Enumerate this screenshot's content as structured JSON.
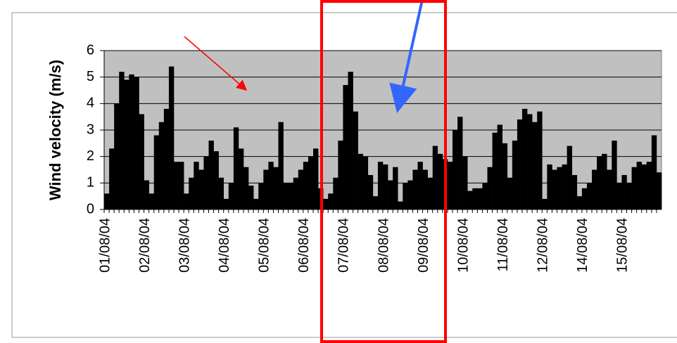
{
  "chart_data": {
    "type": "bar",
    "y_label": "Wind velocity (m/s)",
    "categories": [
      "01/08/04",
      null,
      null,
      null,
      null,
      null,
      null,
      null,
      "02/08/04",
      null,
      null,
      null,
      null,
      null,
      null,
      null,
      "03/08/04",
      null,
      null,
      null,
      null,
      null,
      null,
      null,
      "04/08/04",
      null,
      null,
      null,
      null,
      null,
      null,
      null,
      "05/08/04",
      null,
      null,
      null,
      null,
      null,
      null,
      null,
      "06/08/04",
      null,
      null,
      null,
      null,
      null,
      null,
      null,
      "07/08/04",
      null,
      null,
      null,
      null,
      null,
      null,
      null,
      "08/08/04",
      null,
      null,
      null,
      null,
      null,
      null,
      null,
      "09/08/04",
      null,
      null,
      null,
      null,
      null,
      null,
      null,
      "10/08/04",
      null,
      null,
      null,
      null,
      null,
      null,
      null,
      "11/08/04",
      null,
      null,
      null,
      null,
      null,
      null,
      null,
      "12/08/04",
      null,
      null,
      null,
      null,
      null,
      null,
      null,
      "14/08/04",
      null,
      null,
      null,
      null,
      null,
      null,
      null,
      "15/08/04",
      null,
      null,
      null,
      null,
      null,
      null,
      null
    ],
    "values": [
      0.6,
      2.3,
      4.0,
      5.2,
      4.9,
      5.1,
      5.0,
      3.6,
      1.1,
      0.6,
      2.8,
      3.3,
      3.8,
      5.4,
      1.8,
      1.8,
      0.6,
      1.2,
      1.8,
      1.5,
      2.0,
      2.6,
      2.2,
      1.2,
      0.4,
      1.0,
      3.1,
      2.3,
      1.6,
      0.9,
      0.4,
      1.0,
      1.5,
      1.8,
      1.6,
      3.3,
      1.0,
      1.0,
      1.2,
      1.5,
      1.8,
      2.0,
      2.3,
      0.8,
      0.4,
      0.6,
      1.2,
      2.6,
      4.7,
      5.2,
      3.7,
      2.1,
      2.0,
      1.3,
      0.5,
      1.8,
      1.7,
      1.1,
      1.6,
      0.3,
      1.0,
      1.1,
      1.5,
      1.8,
      1.5,
      1.2,
      2.4,
      2.1,
      1.9,
      1.8,
      3.0,
      3.5,
      2.0,
      0.7,
      0.8,
      0.8,
      1.0,
      1.6,
      2.9,
      3.2,
      2.5,
      1.2,
      2.6,
      3.4,
      3.8,
      3.6,
      3.3,
      3.7,
      0.4,
      1.7,
      1.5,
      1.6,
      1.7,
      2.4,
      1.3,
      0.5,
      0.8,
      1.0,
      1.5,
      2.0,
      2.1,
      1.5,
      2.6,
      1.0,
      1.3,
      1.0,
      1.6,
      1.8,
      1.7,
      1.8,
      2.8,
      1.4
    ],
    "color": "#000000",
    "background": "#c0c0c0",
    "ylim": [
      0,
      6
    ],
    "yticks": [
      0,
      1,
      2,
      3,
      4,
      5,
      6
    ],
    "grid": true
  }
}
